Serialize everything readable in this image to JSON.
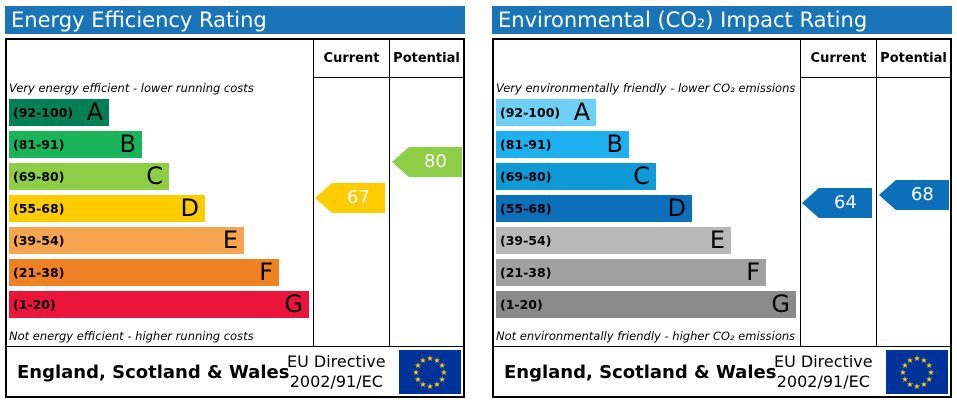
{
  "colors": {
    "title_bar": "#1a74b8",
    "energy_bands": [
      "#008054",
      "#19b459",
      "#8dce46",
      "#ffcc00",
      "#f5a54f",
      "#ef8023",
      "#e9153b"
    ],
    "env_bands": [
      "#6ecff5",
      "#1eb0ef",
      "#0e9ad7",
      "#0b6fb9",
      "#b8b8b8",
      "#a0a0a0",
      "#8a8a8a"
    ],
    "eu_flag": "#003399",
    "eu_stars": "#ffcc00"
  },
  "energy": {
    "title": "Energy Efficiency Rating",
    "current_header": "Current",
    "potential_header": "Potential",
    "top_note": "Very energy efficient - lower running costs",
    "bottom_note": "Not energy efficient - higher running costs",
    "bands": [
      {
        "range": "(92-100)",
        "letter": "A"
      },
      {
        "range": "(81-91)",
        "letter": "B"
      },
      {
        "range": "(69-80)",
        "letter": "C"
      },
      {
        "range": "(55-68)",
        "letter": "D"
      },
      {
        "range": "(39-54)",
        "letter": "E"
      },
      {
        "range": "(21-38)",
        "letter": "F"
      },
      {
        "range": "(1-20)",
        "letter": "G"
      }
    ],
    "current": {
      "value": "67",
      "band": "D",
      "color": "#ffcc00"
    },
    "potential": {
      "value": "80",
      "band": "C",
      "color": "#8dce46"
    },
    "footer_region": "England, Scotland & Wales",
    "directive_line1": "EU Directive",
    "directive_line2": "2002/91/EC",
    "flag_icon": "eu-flag-icon"
  },
  "environmental": {
    "title": "Environmental (CO₂) Impact Rating",
    "current_header": "Current",
    "potential_header": "Potential",
    "top_note": "Very environmentally friendly - lower CO₂ emissions",
    "bottom_note": "Not environmentally friendly - higher CO₂ emissions",
    "bands": [
      {
        "range": "(92-100)",
        "letter": "A"
      },
      {
        "range": "(81-91)",
        "letter": "B"
      },
      {
        "range": "(69-80)",
        "letter": "C"
      },
      {
        "range": "(55-68)",
        "letter": "D"
      },
      {
        "range": "(39-54)",
        "letter": "E"
      },
      {
        "range": "(21-38)",
        "letter": "F"
      },
      {
        "range": "(1-20)",
        "letter": "G"
      }
    ],
    "current": {
      "value": "64",
      "band": "D",
      "color": "#0b6fb9"
    },
    "potential": {
      "value": "68",
      "band": "D",
      "color": "#0b6fb9"
    },
    "footer_region": "England, Scotland & Wales",
    "directive_line1": "EU Directive",
    "directive_line2": "2002/91/EC",
    "flag_icon": "eu-flag-icon"
  }
}
